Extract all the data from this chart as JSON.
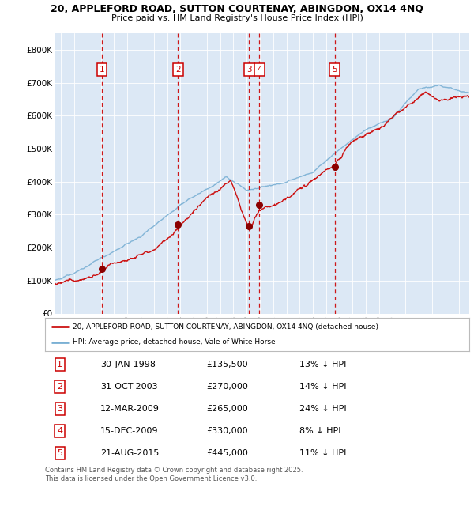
{
  "title_line1": "20, APPLEFORD ROAD, SUTTON COURTENAY, ABINGDON, OX14 4NQ",
  "title_line2": "Price paid vs. HM Land Registry's House Price Index (HPI)",
  "background_color": "#dce8f5",
  "sale_dates_x": [
    1998.08,
    2003.83,
    2009.19,
    2009.96,
    2015.64
  ],
  "sale_prices_y": [
    135500,
    270000,
    265000,
    330000,
    445000
  ],
  "sale_labels": [
    "1",
    "2",
    "3",
    "4",
    "5"
  ],
  "vline_color": "#cc0000",
  "dot_color": "#8b0000",
  "hpi_line_color": "#7ab0d4",
  "price_line_color": "#cc1111",
  "legend_label_red": "20, APPLEFORD ROAD, SUTTON COURTENAY, ABINGDON, OX14 4NQ (detached house)",
  "legend_label_blue": "HPI: Average price, detached house, Vale of White Horse",
  "table_data": [
    [
      "1",
      "30-JAN-1998",
      "£135,500",
      "13% ↓ HPI"
    ],
    [
      "2",
      "31-OCT-2003",
      "£270,000",
      "14% ↓ HPI"
    ],
    [
      "3",
      "12-MAR-2009",
      "£265,000",
      "24% ↓ HPI"
    ],
    [
      "4",
      "15-DEC-2009",
      "£330,000",
      "8% ↓ HPI"
    ],
    [
      "5",
      "21-AUG-2015",
      "£445,000",
      "11% ↓ HPI"
    ]
  ],
  "footer_text": "Contains HM Land Registry data © Crown copyright and database right 2025.\nThis data is licensed under the Open Government Licence v3.0.",
  "ylim": [
    0,
    850000
  ],
  "xlim_start": 1994.5,
  "xlim_end": 2025.8,
  "yticks": [
    0,
    100000,
    200000,
    300000,
    400000,
    500000,
    600000,
    700000,
    800000
  ],
  "ytick_labels": [
    "£0",
    "£100K",
    "£200K",
    "£300K",
    "£400K",
    "£500K",
    "£600K",
    "£700K",
    "£800K"
  ],
  "xticks": [
    1995,
    1996,
    1997,
    1998,
    1999,
    2000,
    2001,
    2002,
    2003,
    2004,
    2005,
    2006,
    2007,
    2008,
    2009,
    2010,
    2011,
    2012,
    2013,
    2014,
    2015,
    2016,
    2017,
    2018,
    2019,
    2020,
    2021,
    2022,
    2023,
    2024,
    2025
  ]
}
